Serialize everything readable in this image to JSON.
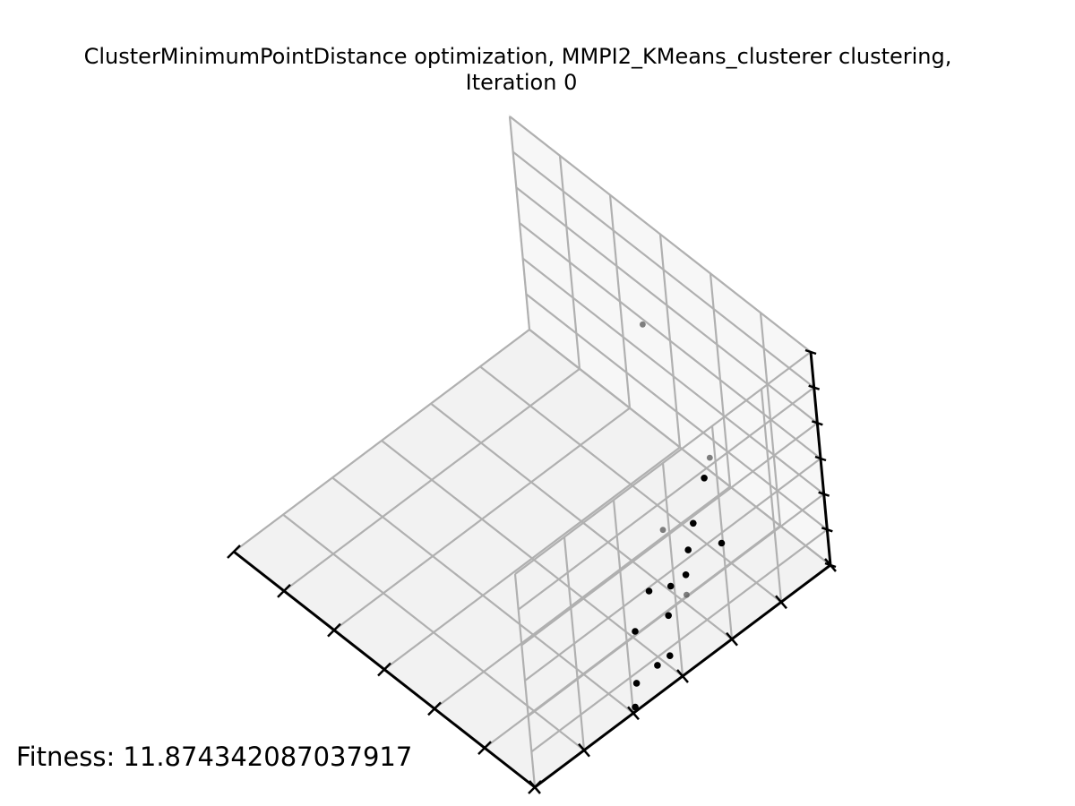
{
  "chart_data": {
    "type": "scatter",
    "projection": "3d",
    "title_lines": [
      "ClusterMinimumPointDistance optimization, MMPI2_KMeans_clusterer clustering,",
      "Iteration 0"
    ],
    "xlabel": "",
    "ylabel": "",
    "zlabel": "",
    "grid": true,
    "tick_labels_shown": false,
    "xlim": [
      0,
      1
    ],
    "ylim": [
      0,
      1
    ],
    "zlim": [
      0,
      1
    ],
    "colors": {
      "point": "#000000",
      "faded_point": "#555555",
      "pane_floor": "#f2f2f2",
      "pane_wall_left": "#f7f7f7",
      "pane_wall_right": "#eeeeee",
      "grid": "#b0b0b0",
      "axis": "#000000"
    },
    "series": [
      {
        "points": [
          {
            "x": 0.43,
            "y": 0.98,
            "z": 0.52,
            "faded": true
          },
          {
            "x": 0.66,
            "y": 0.95,
            "z": 0.18,
            "faded": true
          },
          {
            "x": 0.69,
            "y": 0.9,
            "z": 0.17
          },
          {
            "x": 0.74,
            "y": 0.71,
            "z": 0.18,
            "faded": true
          },
          {
            "x": 0.76,
            "y": 0.79,
            "z": 0.15
          },
          {
            "x": 0.81,
            "y": 0.83,
            "z": 0.07
          },
          {
            "x": 0.79,
            "y": 0.74,
            "z": 0.11
          },
          {
            "x": 0.83,
            "y": 0.69,
            "z": 0.09
          },
          {
            "x": 0.86,
            "y": 0.66,
            "z": 0.06,
            "faded": true
          },
          {
            "x": 0.84,
            "y": 0.63,
            "z": 0.11
          },
          {
            "x": 0.84,
            "y": 0.56,
            "z": 0.16
          },
          {
            "x": 0.89,
            "y": 0.57,
            "z": 0.09
          },
          {
            "x": 0.89,
            "y": 0.46,
            "z": 0.13
          },
          {
            "x": 0.95,
            "y": 0.51,
            "z": 0.03
          },
          {
            "x": 0.97,
            "y": 0.45,
            "z": 0.07
          },
          {
            "x": 0.98,
            "y": 0.37,
            "z": 0.08
          },
          {
            "x": 0.99,
            "y": 0.35,
            "z": 0.0
          }
        ]
      }
    ]
  },
  "fitness_text": "Fitness: 11.874342087037917"
}
